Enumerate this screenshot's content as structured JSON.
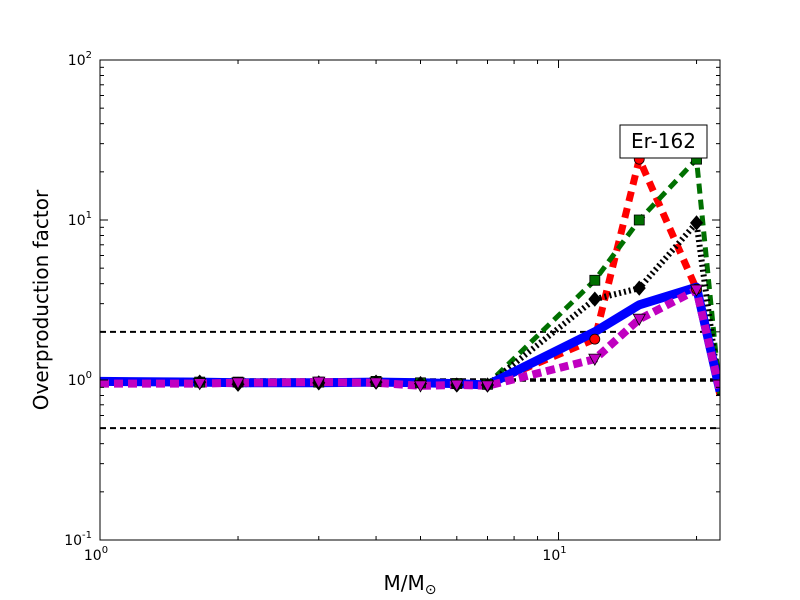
{
  "chart_data": {
    "type": "line",
    "xscale": "log",
    "yscale": "log",
    "xlim": [
      1,
      22.5
    ],
    "ylim": [
      0.1,
      100
    ],
    "xlabel": "M/M",
    "xlabel_sub": "⊙",
    "ylabel": "Overproduction factor",
    "x_ticks": [
      {
        "base": "10",
        "exp": "0",
        "value": 1
      },
      {
        "base": "10",
        "exp": "1",
        "value": 10
      }
    ],
    "y_ticks": [
      {
        "base": "10",
        "exp": "-1",
        "value": 0.1
      },
      {
        "base": "10",
        "exp": "0",
        "value": 1
      },
      {
        "base": "10",
        "exp": "1",
        "value": 10
      },
      {
        "base": "10",
        "exp": "2",
        "value": 100
      }
    ],
    "annotation": "Er-162",
    "reference_lines": [
      {
        "y": 2.0,
        "width": 2
      },
      {
        "y": 1.0,
        "width": 3.5
      },
      {
        "y": 0.5,
        "width": 2
      }
    ],
    "grid": false,
    "series": [
      {
        "color": "#ff0000",
        "marker": "circle",
        "dash": "10,7",
        "width": 7,
        "x": [
          1,
          1.65,
          2,
          3,
          4,
          5,
          6,
          7,
          12,
          15,
          20,
          22.5
        ],
        "y": [
          0.97,
          0.96,
          0.96,
          0.96,
          0.97,
          0.96,
          0.95,
          0.94,
          1.8,
          24,
          3.7,
          0.8
        ]
      },
      {
        "color": "#007000",
        "marker": "square",
        "dash": "10,6",
        "width": 5,
        "x": [
          1,
          1.65,
          2,
          3,
          4,
          5,
          6,
          7,
          12,
          15,
          20,
          22.5
        ],
        "y": [
          0.98,
          0.97,
          0.97,
          0.97,
          0.98,
          0.96,
          0.95,
          0.94,
          4.2,
          10,
          24,
          0.8
        ]
      },
      {
        "color": "#000000",
        "marker": "diamond",
        "dash": "2,3",
        "width": 6,
        "x": [
          1,
          1.65,
          2,
          3,
          4,
          5,
          6,
          7,
          12,
          15,
          20,
          22.5
        ],
        "y": [
          0.98,
          0.97,
          0.94,
          0.96,
          0.97,
          0.95,
          0.93,
          0.93,
          3.2,
          3.75,
          9.6,
          0.8
        ]
      },
      {
        "color": "#0000ff",
        "marker": "none",
        "dash": "",
        "width": 9,
        "x": [
          1,
          1.65,
          2,
          3,
          4,
          5,
          6,
          7,
          12,
          15,
          20,
          22.5
        ],
        "y": [
          0.98,
          0.97,
          0.96,
          0.96,
          0.97,
          0.96,
          0.95,
          0.93,
          2.0,
          2.95,
          3.8,
          0.85
        ]
      },
      {
        "color": "#c000c0",
        "marker": "triangle-down",
        "dash": "9,5",
        "width": 8,
        "x": [
          1,
          1.65,
          2,
          3,
          4,
          5,
          6,
          7,
          12,
          15,
          20,
          22.5
        ],
        "y": [
          0.95,
          0.95,
          0.96,
          0.97,
          0.96,
          0.92,
          0.93,
          0.92,
          1.35,
          2.4,
          3.65,
          0.85
        ]
      }
    ]
  }
}
